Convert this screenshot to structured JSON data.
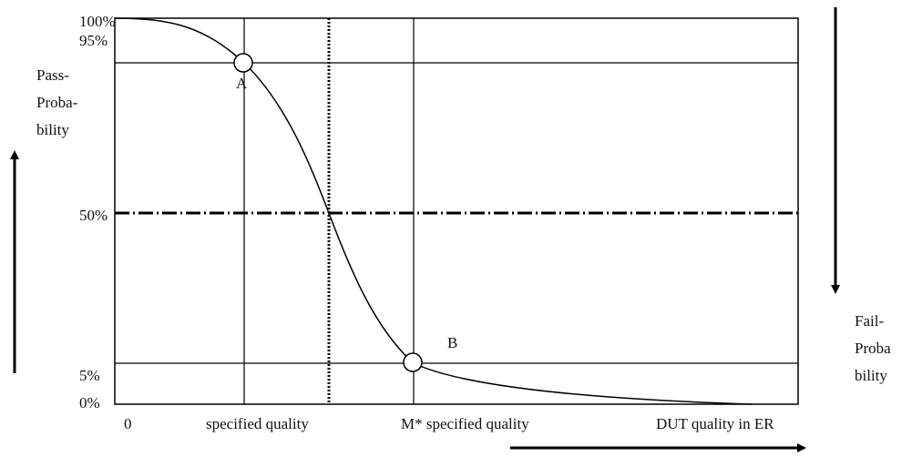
{
  "y_axis": {
    "title_lines": [
      "Pass-",
      "Proba-",
      "bility"
    ],
    "ticks": [
      "100%",
      "95%",
      "50%",
      "5%",
      "0%"
    ]
  },
  "right_axis": {
    "title_lines": [
      "Fail-",
      "Proba",
      "bility"
    ]
  },
  "x_axis": {
    "ticks": [
      "0",
      "specified quality",
      "M* specified quality",
      "DUT quality in ER"
    ]
  },
  "points": [
    "A",
    "B"
  ]
}
